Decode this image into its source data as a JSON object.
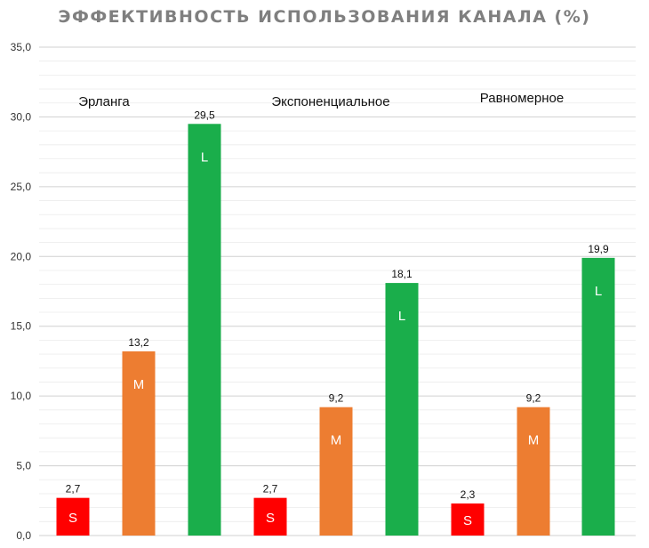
{
  "chart_data": {
    "type": "bar",
    "title": "ЭФФЕКТИВНОСТЬ ИСПОЛЬЗОВАНИЯ КАНАЛА (%)",
    "xlabel": "",
    "ylabel": "",
    "ylim": [
      0,
      35
    ],
    "ytick_labels": [
      "0,0",
      "5,0",
      "10,0",
      "15,0",
      "20,0",
      "25,0",
      "30,0",
      "35,0"
    ],
    "grid": true,
    "legend": "none",
    "groups": [
      "Эрланга",
      "Экспоненциальное",
      "Равномерное"
    ],
    "series": [
      {
        "letter": "S",
        "color": "#ff0000",
        "values": [
          2.7,
          2.7,
          2.3
        ],
        "labels": [
          "2,7",
          "2,7",
          "2,3"
        ]
      },
      {
        "letter": "M",
        "color": "#ed7d31",
        "values": [
          13.2,
          9.2,
          9.2
        ],
        "labels": [
          "13,2",
          "9,2",
          "9,2"
        ]
      },
      {
        "letter": "L",
        "color": "#1aae4b",
        "values": [
          29.5,
          18.1,
          19.9
        ],
        "labels": [
          "29,5",
          "18,1",
          "19,9"
        ]
      }
    ]
  }
}
